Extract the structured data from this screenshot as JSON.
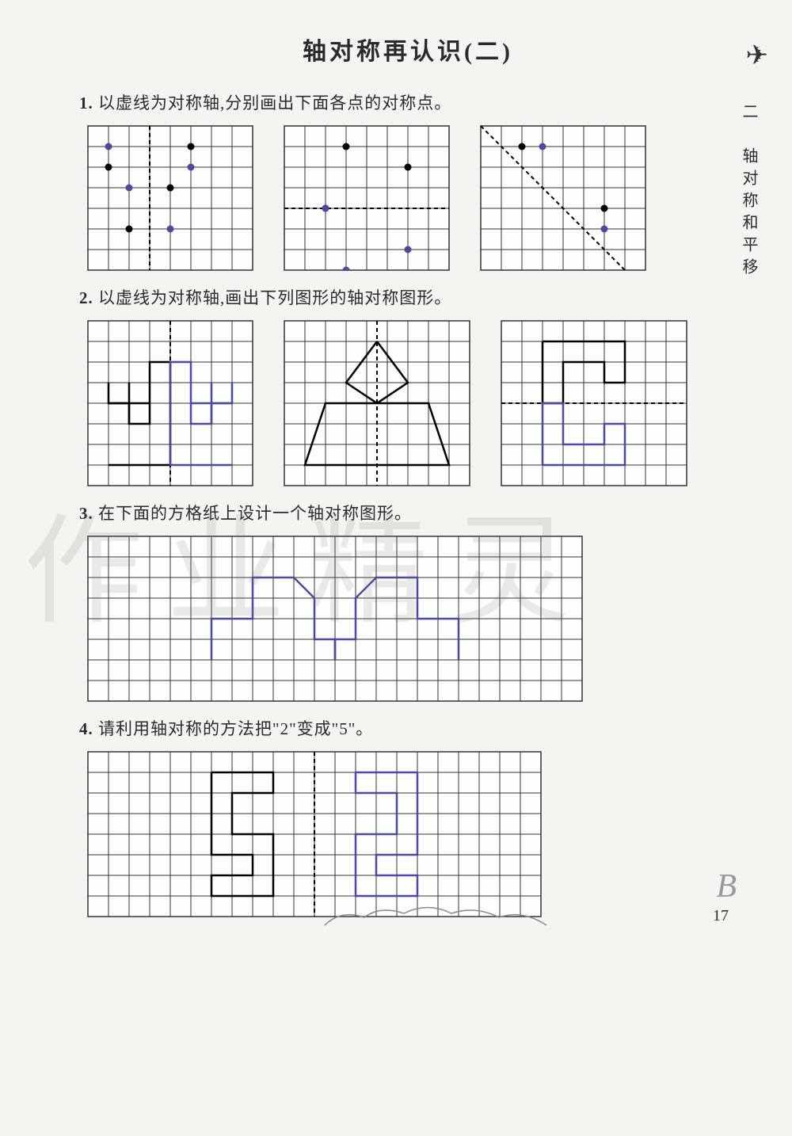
{
  "title": "轴对称再认识(二)",
  "sidebar_label": "二　轴对称和平移",
  "page_number": "17",
  "corner_letter": "B",
  "watermark_text": "作业精灵",
  "questions": {
    "q1": {
      "num": "1.",
      "text": "以虚线为对称轴,分别画出下面各点的对称点。"
    },
    "q2": {
      "num": "2.",
      "text": "以虚线为对称轴,画出下列图形的轴对称图形。"
    },
    "q3": {
      "num": "3.",
      "text": "在下面的方格纸上设计一个轴对称图形。"
    },
    "q4": {
      "num": "4.",
      "text": "请利用轴对称的方法把\"2\"变成\"5\"。"
    }
  },
  "grid_style": {
    "cell": 26,
    "stroke": "#333",
    "stroke_width": 1,
    "dash_pattern": "5,4",
    "answer_color": "#4a4a9e",
    "main_color": "#000"
  },
  "q1_grids": [
    {
      "cols": 8,
      "rows": 7,
      "axis": {
        "type": "v",
        "at": 3
      },
      "points_black": [
        [
          1,
          2
        ],
        [
          2,
          5
        ],
        [
          5,
          1
        ],
        [
          4,
          3
        ]
      ],
      "points_answer": [
        [
          5,
          2
        ],
        [
          4,
          5
        ],
        [
          1,
          1
        ],
        [
          2,
          3
        ]
      ]
    },
    {
      "cols": 8,
      "rows": 7,
      "axis": {
        "type": "h",
        "at": 4
      },
      "points_black": [
        [
          3,
          1
        ],
        [
          6,
          2
        ],
        [
          2,
          4
        ]
      ],
      "points_answer": [
        [
          3,
          7
        ],
        [
          6,
          6
        ],
        [
          2,
          4
        ]
      ]
    },
    {
      "cols": 8,
      "rows": 7,
      "axis": {
        "type": "diag"
      },
      "points_black": [
        [
          2,
          1
        ],
        [
          6,
          4
        ]
      ],
      "points_answer": [
        [
          6,
          5
        ],
        [
          3,
          1
        ]
      ]
    }
  ],
  "q2_grids": [
    {
      "cols": 8,
      "rows": 8,
      "axis": {
        "type": "v",
        "at": 4
      },
      "shape_black": [
        [
          1,
          3
        ],
        [
          1,
          4
        ],
        [
          2,
          4
        ],
        [
          2,
          5
        ],
        [
          3,
          5
        ],
        [
          3,
          2
        ],
        [
          4,
          2
        ],
        [
          4,
          7
        ],
        [
          1,
          7
        ]
      ],
      "close_black": false,
      "extra_black": [
        [
          [
            1,
            4
          ],
          [
            3,
            4
          ]
        ],
        [
          [
            2,
            3
          ],
          [
            2,
            5
          ]
        ]
      ],
      "shape_answer": [
        [
          7,
          3
        ],
        [
          7,
          4
        ],
        [
          6,
          4
        ],
        [
          6,
          5
        ],
        [
          5,
          5
        ],
        [
          5,
          2
        ],
        [
          4,
          2
        ],
        [
          4,
          7
        ],
        [
          7,
          7
        ]
      ],
      "extra_answer": [
        [
          [
            7,
            4
          ],
          [
            5,
            4
          ]
        ],
        [
          [
            6,
            3
          ],
          [
            6,
            5
          ]
        ]
      ]
    },
    {
      "cols": 9,
      "rows": 8,
      "axis": {
        "type": "v",
        "at": 4.5
      },
      "shape_black": [
        [
          4.5,
          1
        ],
        [
          6,
          3
        ],
        [
          4.5,
          4
        ],
        [
          7,
          4
        ],
        [
          8,
          7
        ],
        [
          1,
          7
        ],
        [
          2,
          4
        ],
        [
          4.5,
          4
        ],
        [
          3,
          3
        ]
      ],
      "close_black": true,
      "shape_answer": []
    },
    {
      "cols": 9,
      "rows": 8,
      "axis": {
        "type": "h",
        "at": 4
      },
      "shape_black": [
        [
          2,
          1
        ],
        [
          6,
          1
        ],
        [
          6,
          3
        ],
        [
          5,
          3
        ],
        [
          5,
          2
        ],
        [
          3,
          2
        ],
        [
          3,
          4
        ],
        [
          2,
          4
        ]
      ],
      "close_black": true,
      "shape_answer": [
        [
          2,
          7
        ],
        [
          6,
          7
        ],
        [
          6,
          5
        ],
        [
          5,
          5
        ],
        [
          5,
          6
        ],
        [
          3,
          6
        ],
        [
          3,
          4
        ],
        [
          2,
          4
        ]
      ]
    }
  ],
  "q3_grid": {
    "cols": 24,
    "rows": 8,
    "shape_answer": [
      [
        6,
        6
      ],
      [
        6,
        4
      ],
      [
        8,
        4
      ],
      [
        8,
        2
      ],
      [
        10,
        2
      ],
      [
        11,
        3
      ],
      [
        11,
        5
      ],
      [
        12,
        5
      ],
      [
        12,
        6
      ]
    ],
    "shape_answer2": [
      [
        18,
        6
      ],
      [
        18,
        4
      ],
      [
        16,
        4
      ],
      [
        16,
        2
      ],
      [
        14,
        2
      ],
      [
        13,
        3
      ],
      [
        13,
        5
      ],
      [
        12,
        5
      ],
      [
        12,
        6
      ]
    ]
  },
  "q4_grid": {
    "cols": 22,
    "rows": 8,
    "axis": {
      "type": "v",
      "at": 11
    },
    "shape_black": [
      [
        6,
        1
      ],
      [
        9,
        1
      ],
      [
        9,
        2
      ],
      [
        7,
        2
      ],
      [
        7,
        4
      ],
      [
        9,
        4
      ],
      [
        9,
        7
      ],
      [
        6,
        7
      ],
      [
        6,
        6
      ],
      [
        8,
        6
      ],
      [
        8,
        5
      ],
      [
        6,
        5
      ]
    ],
    "shape_answer": [
      [
        16,
        1
      ],
      [
        13,
        1
      ],
      [
        13,
        2
      ],
      [
        15,
        2
      ],
      [
        15,
        4
      ],
      [
        13,
        4
      ],
      [
        13,
        7
      ],
      [
        16,
        7
      ],
      [
        16,
        6
      ],
      [
        14,
        6
      ],
      [
        14,
        5
      ],
      [
        16,
        5
      ]
    ]
  }
}
